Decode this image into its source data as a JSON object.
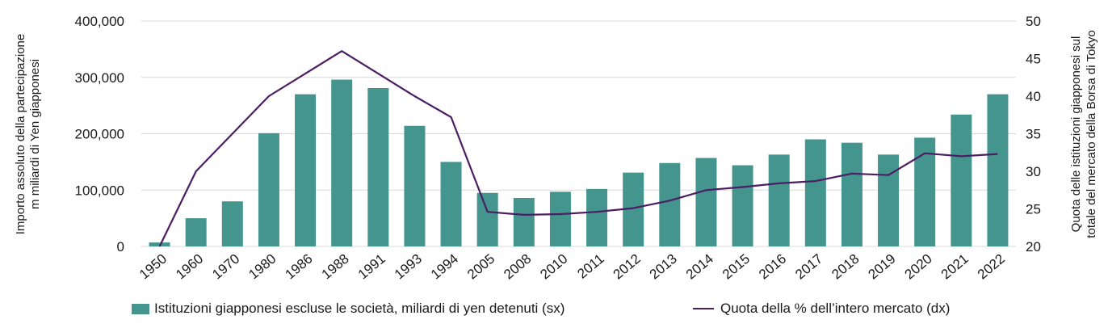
{
  "colors": {
    "bars": "#45958F",
    "line": "#4B1E63",
    "grid": "#D9D9D9",
    "text": "#1a1a1a"
  },
  "chart_data": {
    "type": "bar+line",
    "categories": [
      "1950",
      "1960",
      "1970",
      "1980",
      "1986",
      "1988",
      "1991",
      "1993",
      "1994",
      "2005",
      "2008",
      "2010",
      "2011",
      "2012",
      "2013",
      "2014",
      "2015",
      "2016",
      "2017",
      "2018",
      "2019",
      "2020",
      "2021",
      "2022"
    ],
    "series": [
      {
        "name": "Istituzioni giapponesi escluse le società, miliardi di yen detenuti (sx)",
        "type": "bar",
        "axis": "left",
        "values": [
          7000,
          50000,
          80000,
          201000,
          270000,
          296000,
          281000,
          214000,
          150000,
          95000,
          86000,
          97000,
          102000,
          131000,
          148000,
          157000,
          144000,
          163000,
          190000,
          184000,
          163000,
          193000,
          234000,
          270000
        ]
      },
      {
        "name": "Quota della % dell’intero mercato (dx)",
        "type": "line",
        "axis": "right",
        "values": [
          20,
          30,
          35,
          40,
          43,
          46,
          43,
          40,
          37.2,
          24.6,
          24.2,
          24.3,
          24.6,
          25.1,
          26.1,
          27.5,
          27.9,
          28.4,
          28.7,
          29.7,
          29.5,
          32.4,
          32,
          32.3
        ]
      }
    ],
    "ylabel_left": "Importo assoluto della partecipazione m miliardi di Yen giapponesi",
    "ylabel_left_lines": [
      "Importo assoluto della partecipazione",
      "m miliardi di Yen giapponesi"
    ],
    "ylabel_right": "Quota delle istituzioni giapponesi sul totale del mercato della Borsa di Tokyo",
    "ylabel_right_lines": [
      "Quota delle istituzioni giapponesi sul",
      "totale del mercato della Borsa di Tokyo"
    ],
    "ylim_left": [
      0,
      400000
    ],
    "yticks_left": [
      "0",
      "100,000",
      "200,000",
      "300,000",
      "400,000"
    ],
    "ylim_right": [
      20,
      50
    ],
    "yticks_right": [
      "20",
      "25",
      "30",
      "35",
      "40",
      "45",
      "50"
    ],
    "grid": true,
    "legend_position": "bottom"
  },
  "legend": {
    "bars_label": "Istituzioni giapponesi escluse le società, miliardi di yen detenuti (sx)",
    "line_label": "Quota della % dell’intero mercato (dx)"
  }
}
